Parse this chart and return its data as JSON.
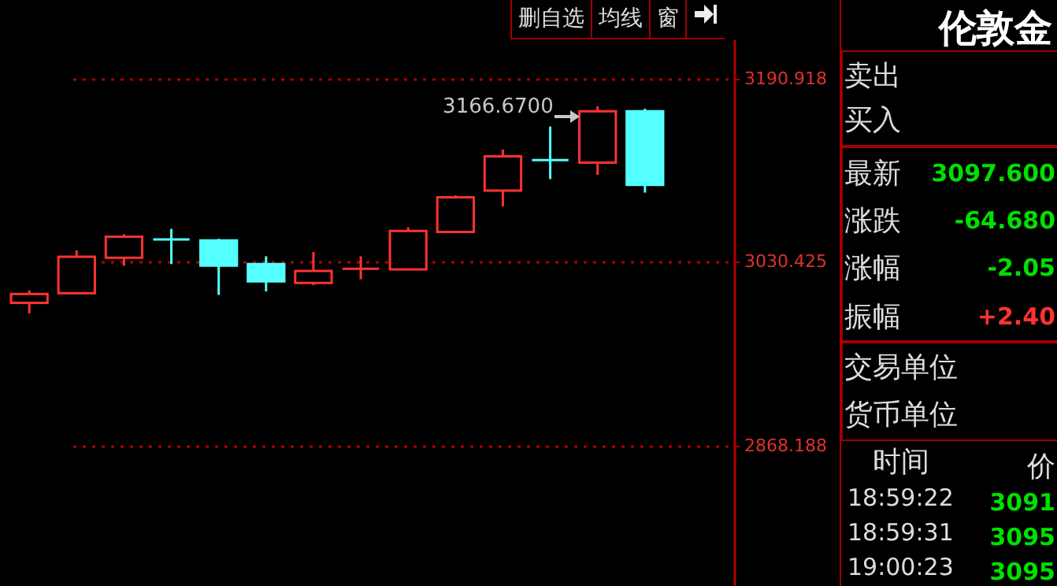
{
  "chart_data": [
    {
      "type": "candlestick",
      "categories": [
        null,
        null,
        null,
        null,
        null,
        null,
        null,
        null,
        null,
        null,
        null,
        null,
        null,
        null
      ],
      "ohlc": [
        [
          2993.8,
          3004.9,
          2984.6,
          3001.6
        ],
        [
          3002.3,
          3040.0,
          3002.3,
          3034.4
        ],
        [
          3033.5,
          3054.2,
          3026.5,
          3052.0
        ],
        [
          3049.6,
          3058.9,
          3027.9,
          3049.6
        ],
        [
          3048.7,
          3050.1,
          3000.8,
          3026.5
        ],
        [
          3027.9,
          3034.8,
          3003.9,
          3012.7
        ],
        [
          3011.3,
          3038.6,
          3009.5,
          3021.9
        ],
        [
          3023.8,
          3034.8,
          3014.6,
          3023.8
        ],
        [
          3023.3,
          3060.3,
          3023.3,
          3057.0
        ],
        [
          3056.1,
          3088.4,
          3056.1,
          3086.6
        ],
        [
          3092.6,
          3128.6,
          3078.7,
          3122.6
        ],
        [
          3119.3,
          3148.9,
          3102.7,
          3119.3
        ],
        [
          3117.1,
          3166.67,
          3106.4,
          3162.28
        ],
        [
          3162.28,
          3164.6,
          3090.8,
          3097.6
        ]
      ],
      "colors": [
        "#ff3232",
        "#ff3232",
        "#ff3232",
        "#54ffff",
        "#54ffff",
        "#54ffff",
        "#ff3232",
        "#ff3232",
        "#ff3232",
        "#ff3232",
        "#ff3232",
        "#54ffff",
        "#ff3232",
        "#54ffff"
      ],
      "ylim": [
        2744.9,
        3225.5
      ],
      "yticks": [
        3190.918,
        3030.425,
        2868.188
      ],
      "grid": "y",
      "annotations": [
        "3166.6700",
        "删自选",
        "均线",
        "窗"
      ]
    },
    {
      "type": "other",
      "title": "伦敦金",
      "annotations": [
        "卖出",
        "买入",
        "最新",
        "3097.600",
        "涨跌",
        "-64.680",
        "涨幅",
        "-2.05",
        "振幅",
        "+2.40",
        "交易单位",
        "货币单位",
        "时间",
        "价",
        "18:59:22",
        "3091",
        "18:59:31",
        "3095",
        "19:00:23",
        "3095"
      ]
    }
  ]
}
